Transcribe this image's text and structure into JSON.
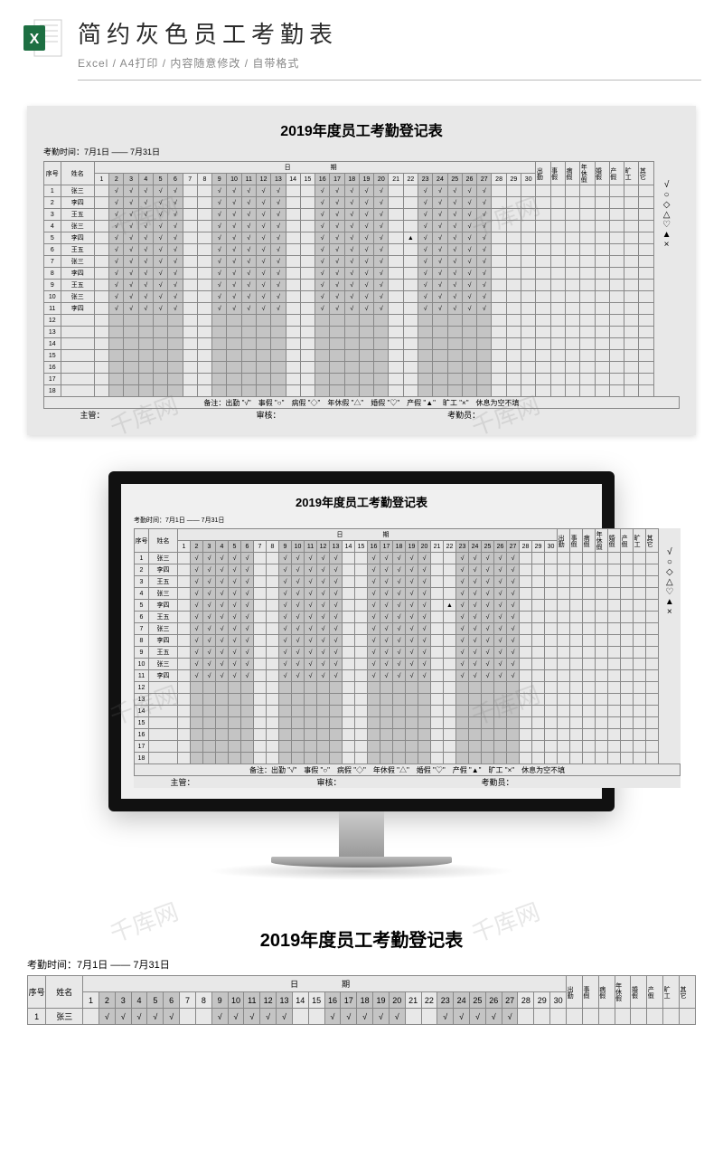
{
  "header": {
    "title": "简约灰色员工考勤表",
    "subtitle": "Excel / A4打印 / 内容随意修改 / 自带格式"
  },
  "sheet": {
    "title": "2019年度员工考勤登记表",
    "period_label": "考勤时间：",
    "period_value": "7月1日 —— 7月31日",
    "col_seq": "序号",
    "col_name": "姓名",
    "col_date_group": "日　　期",
    "days": [
      1,
      2,
      3,
      4,
      5,
      6,
      7,
      8,
      9,
      10,
      11,
      12,
      13,
      14,
      15,
      16,
      17,
      18,
      19,
      20,
      21,
      22,
      23,
      24,
      25,
      26,
      27,
      28,
      29,
      30
    ],
    "day_shaded_ranges": [
      [
        2,
        6
      ],
      [
        9,
        13
      ],
      [
        16,
        20
      ],
      [
        23,
        27
      ]
    ],
    "stat_cols": [
      "出勤",
      "事假",
      "病假",
      "年休假",
      "婚假",
      "产假",
      "旷工",
      "其它"
    ],
    "legend_symbols": [
      "√",
      "○",
      "◇",
      "△",
      "♡",
      "▲",
      "×"
    ],
    "rows": [
      {
        "seq": 1,
        "name": "张三",
        "special": {}
      },
      {
        "seq": 2,
        "name": "李四",
        "special": {}
      },
      {
        "seq": 3,
        "name": "王五",
        "special": {}
      },
      {
        "seq": 4,
        "name": "张三",
        "special": {}
      },
      {
        "seq": 5,
        "name": "李四",
        "special": {
          "22": "▲"
        }
      },
      {
        "seq": 6,
        "name": "王五",
        "special": {}
      },
      {
        "seq": 7,
        "name": "张三",
        "special": {}
      },
      {
        "seq": 8,
        "name": "李四",
        "special": {}
      },
      {
        "seq": 9,
        "name": "王五",
        "special": {}
      },
      {
        "seq": 10,
        "name": "张三",
        "special": {}
      },
      {
        "seq": 11,
        "name": "李四",
        "special": {}
      },
      {
        "seq": 12,
        "name": "",
        "special": null
      },
      {
        "seq": 13,
        "name": "",
        "special": null
      },
      {
        "seq": 14,
        "name": "",
        "special": null
      },
      {
        "seq": 15,
        "name": "",
        "special": null
      },
      {
        "seq": 16,
        "name": "",
        "special": null
      },
      {
        "seq": 17,
        "name": "",
        "special": null
      },
      {
        "seq": 18,
        "name": "",
        "special": null
      }
    ],
    "remark": "备注：出勤 \"√\"　事假 \"○\"　病假 \"◇\"　年休假 \"△\"　婚假 \"♡\"　产假 \"▲\"　旷工 \"×\"　休息为空不填",
    "sign_supervisor": "主管：",
    "sign_auditor": "审核：",
    "sign_clerk": "考勤员：",
    "colors": {
      "page_bg": "#e8e8e8",
      "shaded_cell": "#c4c4c4",
      "border": "#888888",
      "text": "#2b2b2b"
    }
  },
  "watermark_text": "千库网"
}
